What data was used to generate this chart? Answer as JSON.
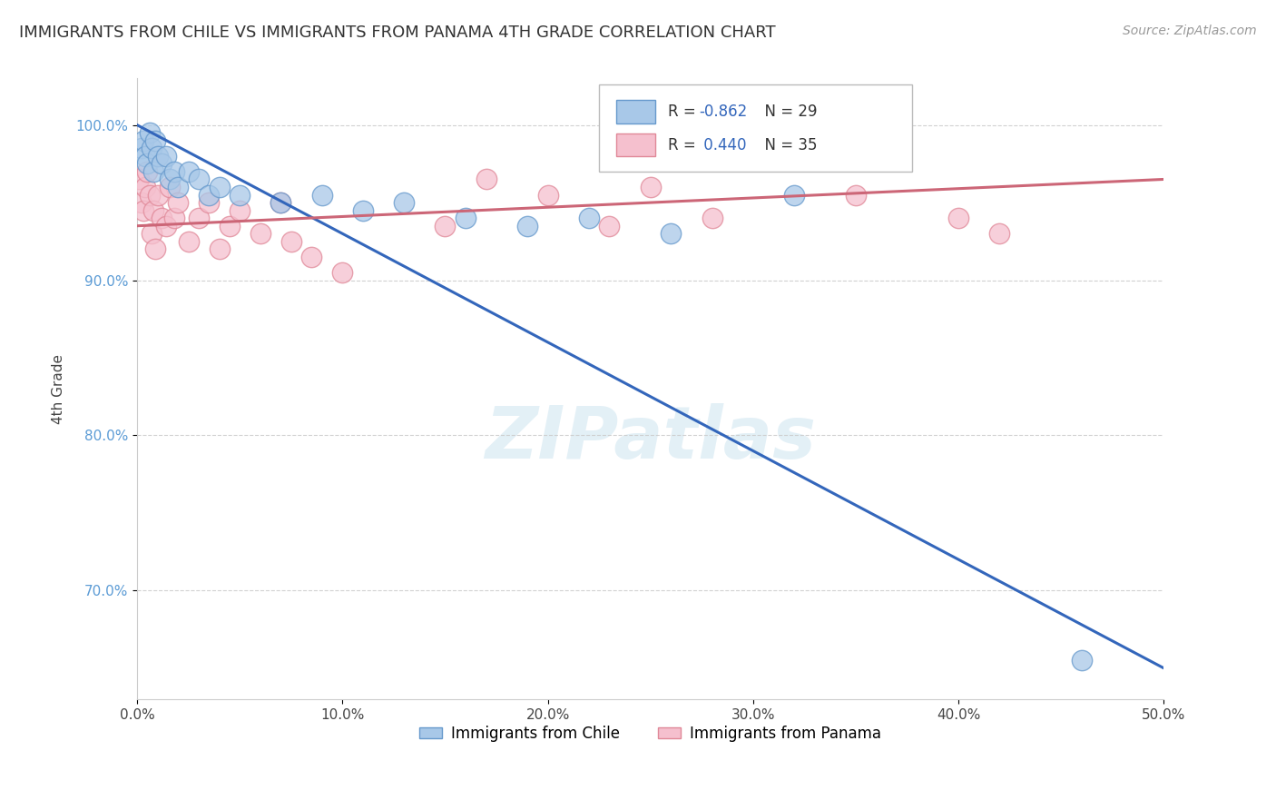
{
  "title": "IMMIGRANTS FROM CHILE VS IMMIGRANTS FROM PANAMA 4TH GRADE CORRELATION CHART",
  "source_text": "Source: ZipAtlas.com",
  "ylabel": "4th Grade",
  "xlabel_vals": [
    0.0,
    10.0,
    20.0,
    30.0,
    40.0,
    50.0
  ],
  "ylabel_vals": [
    70.0,
    80.0,
    90.0,
    100.0
  ],
  "xlim": [
    0.0,
    50.0
  ],
  "ylim": [
    63.0,
    103.0
  ],
  "chile_color": "#a8c8e8",
  "chile_edge_color": "#6699cc",
  "panama_color": "#f5c0ce",
  "panama_edge_color": "#e08898",
  "chile_line_color": "#3366bb",
  "panama_line_color": "#cc6677",
  "chile_R": -0.862,
  "chile_N": 29,
  "panama_R": 0.44,
  "panama_N": 35,
  "legend_label_chile": "Immigrants from Chile",
  "legend_label_panama": "Immigrants from Panama",
  "watermark": "ZIPatlas",
  "chile_points_x": [
    0.2,
    0.3,
    0.4,
    0.5,
    0.6,
    0.7,
    0.8,
    0.9,
    1.0,
    1.2,
    1.4,
    1.6,
    1.8,
    2.0,
    2.5,
    3.0,
    3.5,
    4.0,
    5.0,
    7.0,
    9.0,
    11.0,
    13.0,
    16.0,
    19.0,
    22.0,
    26.0,
    32.0,
    46.0
  ],
  "chile_points_y": [
    98.5,
    99.0,
    98.0,
    97.5,
    99.5,
    98.5,
    97.0,
    99.0,
    98.0,
    97.5,
    98.0,
    96.5,
    97.0,
    96.0,
    97.0,
    96.5,
    95.5,
    96.0,
    95.5,
    95.0,
    95.5,
    94.5,
    95.0,
    94.0,
    93.5,
    94.0,
    93.0,
    95.5,
    65.5
  ],
  "panama_points_x": [
    0.1,
    0.2,
    0.3,
    0.4,
    0.5,
    0.6,
    0.7,
    0.8,
    0.9,
    1.0,
    1.2,
    1.4,
    1.6,
    1.8,
    2.0,
    2.5,
    3.0,
    3.5,
    4.0,
    4.5,
    5.0,
    6.0,
    7.0,
    7.5,
    8.5,
    10.0,
    15.0,
    17.0,
    20.0,
    23.0,
    25.0,
    28.0,
    35.0,
    40.0,
    42.0
  ],
  "panama_points_y": [
    96.5,
    95.0,
    94.5,
    96.0,
    97.0,
    95.5,
    93.0,
    94.5,
    92.0,
    95.5,
    94.0,
    93.5,
    96.0,
    94.0,
    95.0,
    92.5,
    94.0,
    95.0,
    92.0,
    93.5,
    94.5,
    93.0,
    95.0,
    92.5,
    91.5,
    90.5,
    93.5,
    96.5,
    95.5,
    93.5,
    96.0,
    94.0,
    95.5,
    94.0,
    93.0
  ],
  "chile_line_x0": 0.0,
  "chile_line_y0": 100.0,
  "chile_line_x1": 50.0,
  "chile_line_y1": 65.0,
  "panama_line_x0": 0.0,
  "panama_line_y0": 93.5,
  "panama_line_x1": 50.0,
  "panama_line_y1": 96.5
}
